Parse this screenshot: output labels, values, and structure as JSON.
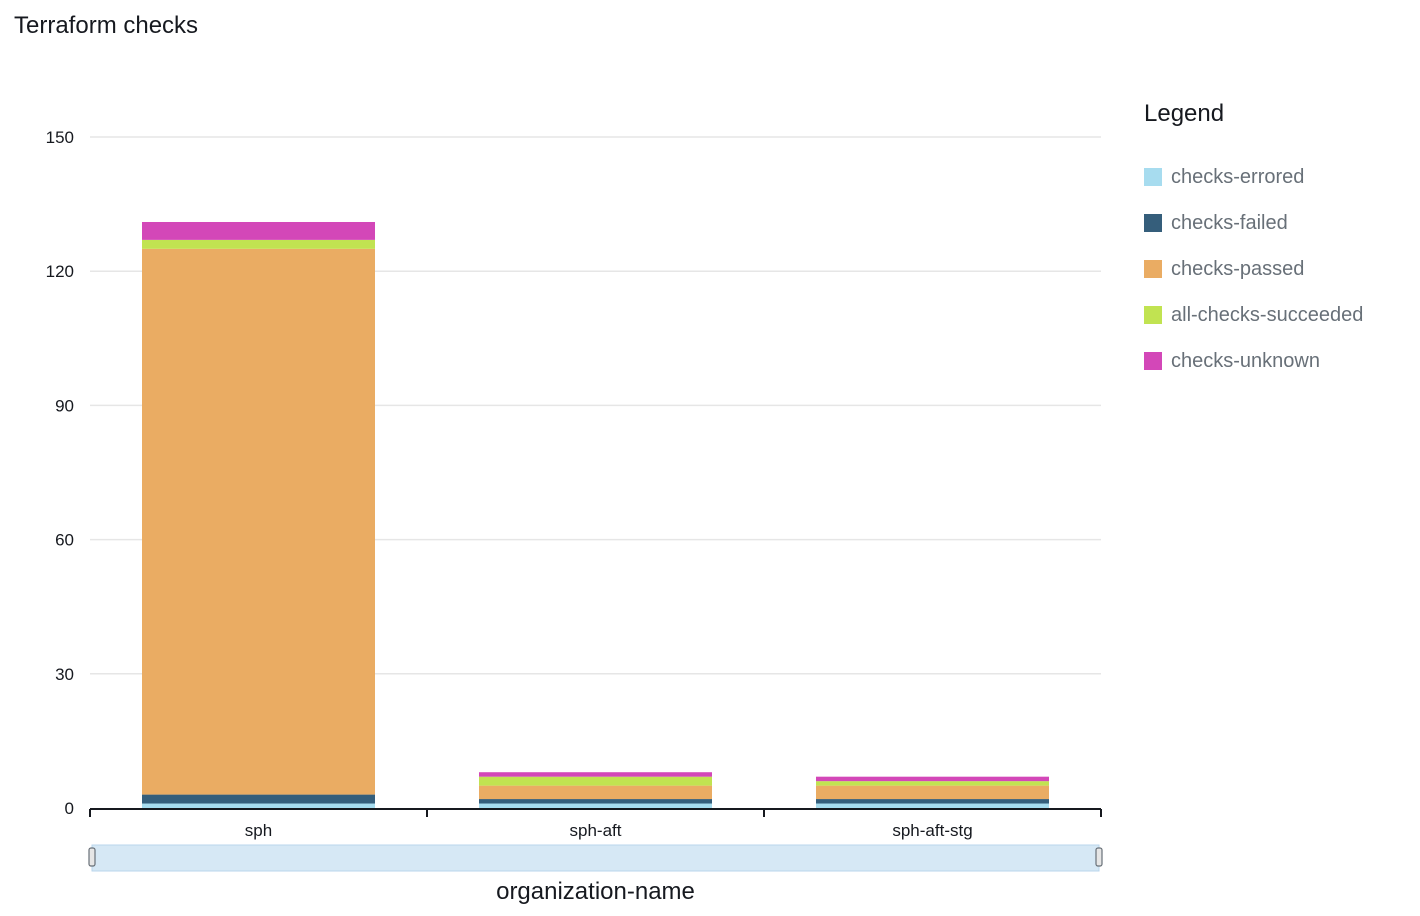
{
  "title": "Terraform checks",
  "legend": {
    "title": "Legend",
    "items": [
      {
        "label": "checks-errored",
        "color": "#a7dcef"
      },
      {
        "label": "checks-failed",
        "color": "#355e7b"
      },
      {
        "label": "checks-passed",
        "color": "#eaac63"
      },
      {
        "label": "all-checks-succeeded",
        "color": "#c1e351"
      },
      {
        "label": "checks-unknown",
        "color": "#d347b8"
      }
    ]
  },
  "chart_data": {
    "type": "bar",
    "stacked": true,
    "categories": [
      "sph",
      "sph-aft",
      "sph-aft-stg"
    ],
    "series": [
      {
        "name": "checks-errored",
        "color": "#a7dcef",
        "values": [
          1,
          1,
          1
        ]
      },
      {
        "name": "checks-failed",
        "color": "#355e7b",
        "values": [
          2,
          1,
          1
        ]
      },
      {
        "name": "checks-passed",
        "color": "#eaac63",
        "values": [
          122,
          3,
          3
        ]
      },
      {
        "name": "all-checks-succeeded",
        "color": "#c1e351",
        "values": [
          2,
          2,
          1
        ]
      },
      {
        "name": "checks-unknown",
        "color": "#d347b8",
        "values": [
          4,
          1,
          1
        ]
      }
    ],
    "xlabel": "organization-name",
    "ylabel": "",
    "ylim": [
      0,
      150
    ],
    "yticks": [
      0,
      30,
      60,
      90,
      120,
      150
    ],
    "grid": true,
    "legend_position": "right"
  }
}
